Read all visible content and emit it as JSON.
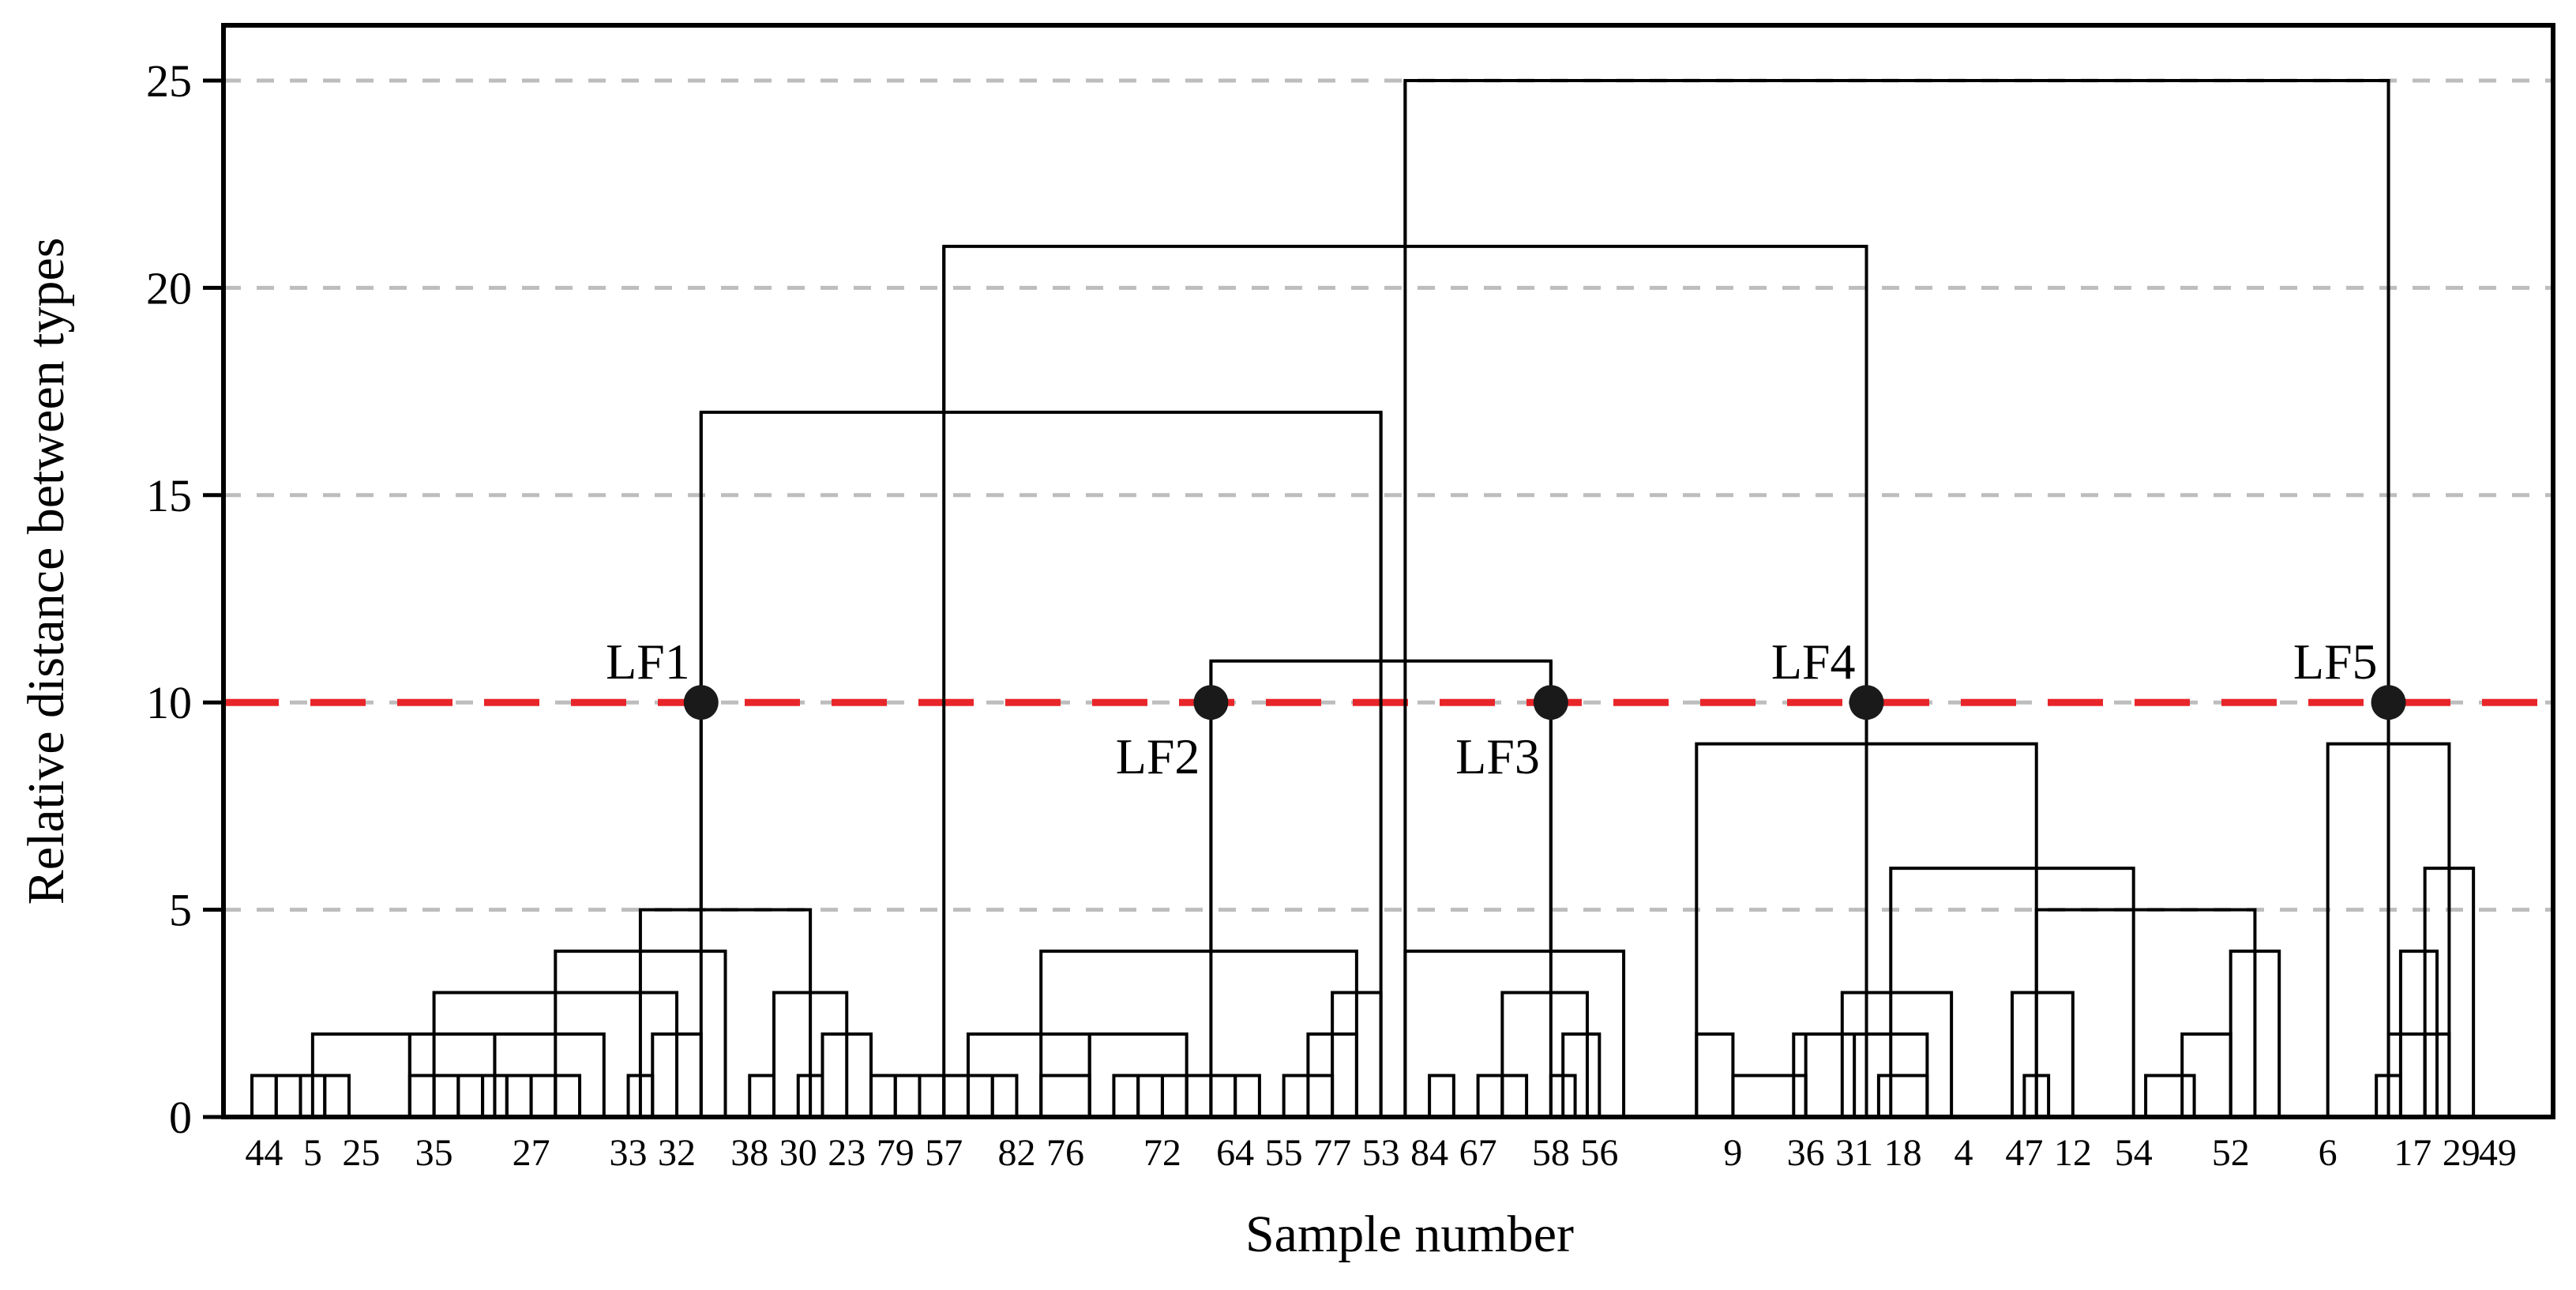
{
  "chart_data": {
    "type": "dendrogram",
    "xlabel": "Sample number",
    "ylabel": "Relative distance between types",
    "ylim": [
      0,
      25.5
    ],
    "yticks": [
      0,
      5,
      10,
      15,
      20,
      25
    ],
    "grid": "horizontal dashed gray at 5, 10, 15, 20, 25",
    "cut_threshold": 10,
    "cut_line_color": "#e8262a",
    "leaf_slots": 56,
    "leaf_labels": [
      {
        "slot": 1,
        "text": "44"
      },
      {
        "slot": 3,
        "text": "5"
      },
      {
        "slot": 5,
        "text": "25"
      },
      {
        "slot": 8,
        "text": "35"
      },
      {
        "slot": 12,
        "text": "27"
      },
      {
        "slot": 16,
        "text": "33"
      },
      {
        "slot": 18,
        "text": "32"
      },
      {
        "slot": 21,
        "text": "38"
      },
      {
        "slot": 23,
        "text": "30"
      },
      {
        "slot": 25,
        "text": "23"
      },
      {
        "slot": 27,
        "text": "79"
      },
      {
        "slot": 29,
        "text": "57"
      },
      {
        "slot": 32,
        "text": "82"
      },
      {
        "slot": 34,
        "text": "76"
      },
      {
        "slot": 38,
        "text": "72"
      },
      {
        "slot": 41,
        "text": "64"
      },
      {
        "slot": 43,
        "text": "55"
      },
      {
        "slot": 45,
        "text": "77"
      },
      {
        "slot": 47,
        "text": "53"
      },
      {
        "slot": 49,
        "text": "84"
      },
      {
        "slot": 51,
        "text": "67"
      },
      {
        "slot": 54,
        "text": "58"
      },
      {
        "slot": 56,
        "text": "56"
      }
    ],
    "right_labels": [
      "9",
      "36",
      "31",
      "18",
      "4",
      "47",
      "12",
      "54",
      "52",
      "6",
      "17",
      "29",
      "49"
    ],
    "merges": [
      {
        "x1": 0.5,
        "x2": 1.5,
        "h": 1
      },
      {
        "x1": 1.5,
        "x2": 2.5,
        "h": 1
      },
      {
        "x1": 2.5,
        "x2": 3.5,
        "h": 1
      },
      {
        "x1": 3.5,
        "x2": 4.5,
        "h": 1
      },
      {
        "x1": 7,
        "x2": 8,
        "h": 1
      },
      {
        "x1": 8,
        "x2": 9,
        "h": 1
      },
      {
        "x1": 9,
        "x2": 10,
        "h": 1
      },
      {
        "x1": 10,
        "x2": 11,
        "h": 1
      },
      {
        "x1": 11,
        "x2": 12,
        "h": 1
      },
      {
        "x1": 12,
        "x2": 13,
        "h": 1
      },
      {
        "x1": 13,
        "x2": 14,
        "h": 1
      },
      {
        "x1": 16,
        "x2": 17,
        "h": 1
      },
      {
        "x1": 3,
        "x2": 7,
        "h": 2
      },
      {
        "x1": 7,
        "x2": 10.5,
        "h": 2
      },
      {
        "x1": 10.5,
        "x2": 15,
        "h": 2
      },
      {
        "x1": 17,
        "x2": 19,
        "h": 2
      },
      {
        "x1": 8,
        "x2": 18,
        "h": 3
      },
      {
        "x1": 13,
        "x2": 20,
        "h": 4
      },
      {
        "x1": 16.5,
        "x2": 23.5,
        "h": 5
      },
      {
        "x1": 21,
        "x2": 22,
        "h": 1
      },
      {
        "x1": 23,
        "x2": 24,
        "h": 1
      },
      {
        "x1": 24,
        "x2": 26,
        "h": 2
      },
      {
        "x1": 22,
        "x2": 25,
        "h": 3
      },
      {
        "x1": 26,
        "x2": 27,
        "h": 1
      },
      {
        "x1": 27,
        "x2": 28,
        "h": 1
      },
      {
        "x1": 28,
        "x2": 29,
        "h": 1
      },
      {
        "x1": 29,
        "x2": 30,
        "h": 1
      },
      {
        "x1": 30,
        "x2": 31,
        "h": 1
      },
      {
        "x1": 31,
        "x2": 32,
        "h": 1
      },
      {
        "x1": 33,
        "x2": 35,
        "h": 1
      },
      {
        "x1": 36,
        "x2": 37,
        "h": 1
      },
      {
        "x1": 37,
        "x2": 38,
        "h": 1
      },
      {
        "x1": 38,
        "x2": 39,
        "h": 1
      },
      {
        "x1": 39,
        "x2": 40,
        "h": 1
      },
      {
        "x1": 40,
        "x2": 41,
        "h": 1
      },
      {
        "x1": 41,
        "x2": 42,
        "h": 1
      },
      {
        "x1": 30,
        "x2": 35,
        "h": 2
      },
      {
        "x1": 35,
        "x2": 39,
        "h": 2
      },
      {
        "x1": 43,
        "x2": 45,
        "h": 1
      },
      {
        "x1": 44,
        "x2": 46,
        "h": 2
      },
      {
        "x1": 45,
        "x2": 47,
        "h": 3
      },
      {
        "x1": 33,
        "x2": 46,
        "h": 4
      },
      {
        "x1": 49,
        "x2": 50,
        "h": 1
      },
      {
        "x1": 51,
        "x2": 52,
        "h": 1
      },
      {
        "x1": 52,
        "x2": 53,
        "h": 1
      },
      {
        "x1": 54,
        "x2": 55,
        "h": 1
      },
      {
        "x1": 54.5,
        "x2": 56,
        "h": 2
      },
      {
        "x1": 52,
        "x2": 55.5,
        "h": 3
      },
      {
        "x1": 48,
        "x2": 57,
        "h": 4
      },
      {
        "x1": 40,
        "x2": 54,
        "h": 11
      },
      {
        "x1": 19,
        "x2": 47,
        "h": 17
      },
      {
        "x1": 61.5,
        "x2": 64.5,
        "h": 1
      },
      {
        "x1": 64.5,
        "x2": 66.5,
        "h": 2
      },
      {
        "x1": 67.5,
        "x2": 69.5,
        "h": 1
      },
      {
        "x1": 64,
        "x2": 69.5,
        "h": 2
      },
      {
        "x1": 66,
        "x2": 70.5,
        "h": 3
      },
      {
        "x1": 73.5,
        "x2": 74.5,
        "h": 1
      },
      {
        "x1": 73,
        "x2": 75.5,
        "h": 3
      },
      {
        "x1": 78.5,
        "x2": 80.5,
        "h": 1
      },
      {
        "x1": 80,
        "x2": 82,
        "h": 2
      },
      {
        "x1": 82,
        "x2": 84,
        "h": 4
      },
      {
        "x1": 74,
        "x2": 83,
        "h": 5
      },
      {
        "x1": 68,
        "x2": 78,
        "h": 6
      },
      {
        "x1": 60,
        "x2": 61.5,
        "h": 2
      },
      {
        "x1": 60,
        "x2": 74,
        "h": 9
      },
      {
        "x1": 88,
        "x2": 89,
        "h": 1
      },
      {
        "x1": 88.5,
        "x2": 90,
        "h": 2
      },
      {
        "x1": 90,
        "x2": 91,
        "h": 2
      },
      {
        "x1": 89,
        "x2": 90.5,
        "h": 4
      },
      {
        "x1": 90,
        "x2": 92,
        "h": 6
      },
      {
        "x1": 86,
        "x2": 91,
        "h": 9
      },
      {
        "x1": 29,
        "x2": 67,
        "h": 21
      },
      {
        "x1": 48,
        "x2": 88.5,
        "h": 25
      }
    ],
    "clusters": [
      {
        "name": "LF1",
        "x": 19,
        "h": 10,
        "label_side": "above-left"
      },
      {
        "name": "LF2",
        "x": 40,
        "h": 10,
        "label_side": "below-left"
      },
      {
        "name": "LF3",
        "x": 54,
        "h": 10,
        "label_side": "below-left"
      },
      {
        "name": "LF4",
        "x": 67,
        "h": 10,
        "label_side": "above-left"
      },
      {
        "name": "LF5",
        "x": 88.5,
        "h": 10,
        "label_side": "above-left"
      }
    ],
    "x_domain": [
      0,
      94
    ]
  }
}
